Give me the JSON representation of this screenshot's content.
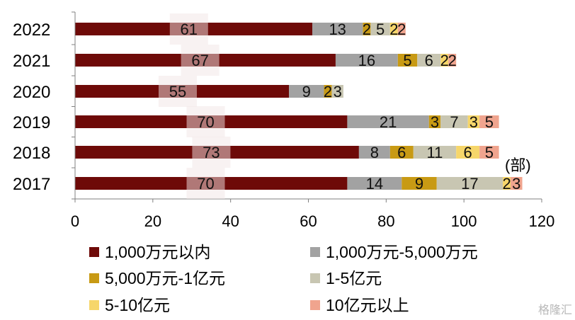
{
  "chart_data": {
    "type": "bar",
    "orientation": "horizontal",
    "stacked": true,
    "categories": [
      "2022",
      "2021",
      "2020",
      "2019",
      "2018",
      "2017"
    ],
    "series": [
      {
        "name": "1,000万元以内",
        "values": [
          61,
          67,
          55,
          70,
          73,
          70
        ],
        "color": "#6e0a08"
      },
      {
        "name": "1,000万元-5,000万元",
        "values": [
          13,
          16,
          9,
          21,
          8,
          14
        ],
        "color": "#a2a2a2"
      },
      {
        "name": "5,000万元-1亿元",
        "values": [
          2,
          5,
          2,
          3,
          6,
          9
        ],
        "color": "#c89a14"
      },
      {
        "name": "1-5亿元",
        "values": [
          5,
          6,
          3,
          7,
          11,
          17
        ],
        "color": "#c8c6b2"
      },
      {
        "name": "5-10亿元",
        "values": [
          2,
          2,
          0,
          3,
          6,
          2
        ],
        "color": "#f6d66a"
      },
      {
        "name": "10亿元以上",
        "values": [
          2,
          2,
          0,
          5,
          5,
          3
        ],
        "color": "#f0a48e"
      }
    ],
    "xticks": [
      "0",
      "20",
      "40",
      "60",
      "80",
      "100",
      "120"
    ],
    "xlim": [
      0,
      120
    ],
    "unit_label": "(部)",
    "legend_position": "bottom",
    "grid": false
  },
  "watermark": "格隆汇"
}
